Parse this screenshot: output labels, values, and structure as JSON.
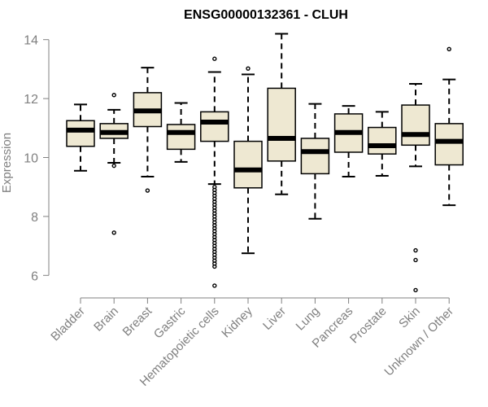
{
  "chart_data": {
    "type": "boxplot",
    "title": "ENSG00000132361 - CLUH",
    "xlabel": "",
    "ylabel": "Expression",
    "ylim": [
      5.4,
      14.3
    ],
    "yticks": [
      6,
      8,
      10,
      12,
      14
    ],
    "box_color": "#EEE8D2",
    "categories": [
      "Bladder",
      "Brain",
      "Breast",
      "Gastric",
      "Hematopoietic cells",
      "Kidney",
      "Liver",
      "Lung",
      "Pancreas",
      "Prostate",
      "Skin",
      "Unknown / Other"
    ],
    "boxes": [
      {
        "name": "Bladder",
        "whisker_low": 9.55,
        "q1": 10.38,
        "median": 10.93,
        "q3": 11.25,
        "whisker_high": 11.8,
        "outliers": []
      },
      {
        "name": "Brain",
        "whisker_low": 9.82,
        "q1": 10.65,
        "median": 10.85,
        "q3": 11.15,
        "whisker_high": 11.62,
        "outliers": [
          12.12,
          9.72,
          7.45
        ]
      },
      {
        "name": "Breast",
        "whisker_low": 9.35,
        "q1": 11.05,
        "median": 11.58,
        "q3": 12.2,
        "whisker_high": 13.05,
        "outliers": [
          8.88
        ]
      },
      {
        "name": "Gastric",
        "whisker_low": 9.85,
        "q1": 10.28,
        "median": 10.85,
        "q3": 11.12,
        "whisker_high": 11.85,
        "outliers": []
      },
      {
        "name": "Hematopoietic cells",
        "whisker_low": 9.1,
        "q1": 10.55,
        "median": 11.2,
        "q3": 11.55,
        "whisker_high": 12.9,
        "outliers": [
          13.35,
          9.0,
          8.9,
          8.8,
          8.7,
          8.6,
          8.5,
          8.4,
          8.3,
          8.2,
          8.1,
          8.0,
          7.9,
          7.8,
          7.7,
          7.6,
          7.5,
          7.4,
          7.3,
          7.2,
          7.1,
          7.0,
          6.9,
          6.8,
          6.7,
          6.6,
          6.5,
          6.4,
          6.3,
          5.65
        ]
      },
      {
        "name": "Kidney",
        "whisker_low": 6.75,
        "q1": 8.97,
        "median": 9.58,
        "q3": 10.55,
        "whisker_high": 12.82,
        "outliers": [
          13.02
        ]
      },
      {
        "name": "Liver",
        "whisker_low": 8.75,
        "q1": 9.88,
        "median": 10.65,
        "q3": 12.35,
        "whisker_high": 14.2,
        "outliers": []
      },
      {
        "name": "Lung",
        "whisker_low": 7.92,
        "q1": 9.45,
        "median": 10.2,
        "q3": 10.65,
        "whisker_high": 11.82,
        "outliers": []
      },
      {
        "name": "Pancreas",
        "whisker_low": 9.35,
        "q1": 10.18,
        "median": 10.85,
        "q3": 11.48,
        "whisker_high": 11.75,
        "outliers": []
      },
      {
        "name": "Prostate",
        "whisker_low": 9.38,
        "q1": 10.12,
        "median": 10.4,
        "q3": 11.02,
        "whisker_high": 11.55,
        "outliers": []
      },
      {
        "name": "Skin",
        "whisker_low": 9.7,
        "q1": 10.42,
        "median": 10.78,
        "q3": 11.78,
        "whisker_high": 12.5,
        "outliers": [
          6.85,
          6.52,
          5.5
        ]
      },
      {
        "name": "Unknown / Other",
        "whisker_low": 8.38,
        "q1": 9.75,
        "median": 10.55,
        "q3": 11.15,
        "whisker_high": 12.65,
        "outliers": [
          13.68
        ]
      }
    ]
  }
}
